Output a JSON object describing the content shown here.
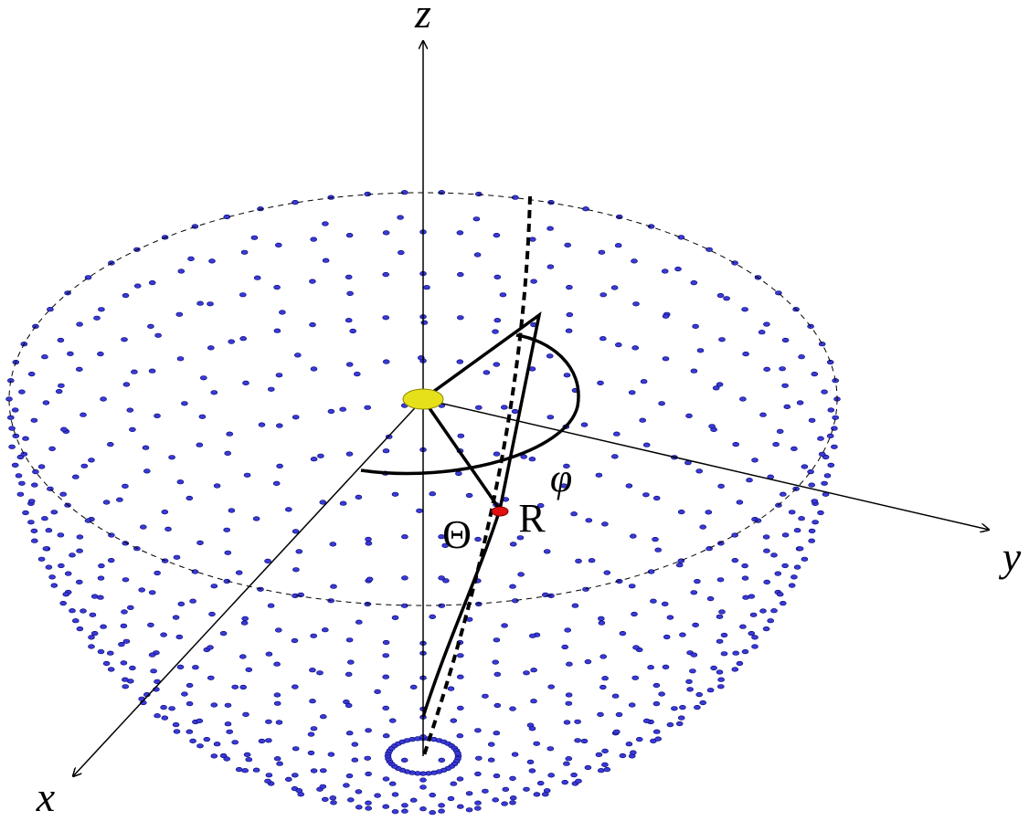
{
  "axes": {
    "z": "z",
    "x": "x",
    "y": "y"
  },
  "labels": {
    "theta": "Θ",
    "r": "R",
    "phi": "φ"
  }
}
